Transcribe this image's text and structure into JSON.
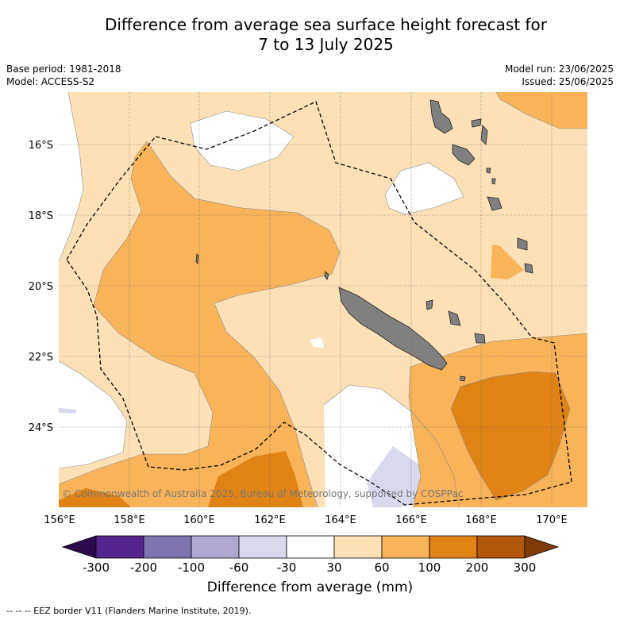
{
  "title": {
    "line1": "Difference from average sea surface height forecast for",
    "line2": "7 to 13 July 2025"
  },
  "meta_left": {
    "base_period": "Base period: 1981-2018",
    "model": "Model: ACCESS-S2"
  },
  "meta_right": {
    "model_run": "Model run: 23/06/2025",
    "issued": "Issued: 25/06/2025"
  },
  "map": {
    "longitude_labels": [
      "156°E",
      "158°E",
      "160°E",
      "162°E",
      "164°E",
      "166°E",
      "168°E",
      "170°E"
    ],
    "latitude_labels": [
      "16°S",
      "18°S",
      "20°S",
      "22°S",
      "24°S"
    ],
    "copyright": "© Commonwealth of Australia 2025, Bureau of Meteorology, supported by COSPPac",
    "land_color": "#808080"
  },
  "colorbar": {
    "ticks": [
      "-300",
      "-200",
      "-100",
      "-60",
      "-30",
      "30",
      "60",
      "100",
      "200",
      "300"
    ],
    "colors": [
      "#2d0a4e",
      "#54258d",
      "#8074b1",
      "#b0a8d2",
      "#d9d9ed",
      "#ffffff",
      "#fee0b6",
      "#f9b45a",
      "#e08214",
      "#b3580a",
      "#7f3b08"
    ],
    "title": "Difference from average (mm)"
  },
  "footer": "-- -- -- EEZ border V11 (Flanders Marine Institute, 2019)."
}
